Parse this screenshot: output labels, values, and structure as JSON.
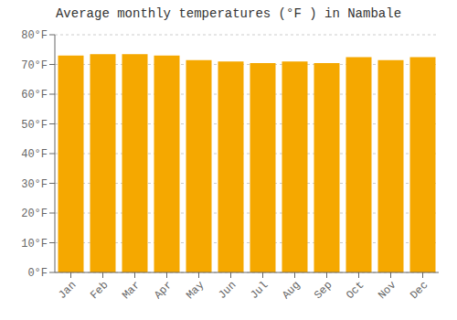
{
  "chart_data": {
    "type": "bar",
    "title": "Average monthly temperatures (°F ) in Nambale",
    "categories": [
      "Jan",
      "Feb",
      "Mar",
      "Apr",
      "May",
      "Jun",
      "Jul",
      "Aug",
      "Sep",
      "Oct",
      "Nov",
      "Dec"
    ],
    "values": [
      73,
      73.5,
      73.5,
      73,
      71.5,
      71,
      70.5,
      71,
      70.5,
      72.5,
      71.5,
      72.5
    ],
    "color": "#F5A800",
    "ylim": [
      0,
      80
    ],
    "yticks": [
      {
        "value": 0,
        "label": "0°F"
      },
      {
        "value": 10,
        "label": "10°F"
      },
      {
        "value": 20,
        "label": "20°F"
      },
      {
        "value": 30,
        "label": "30°F"
      },
      {
        "value": 40,
        "label": "40°F"
      },
      {
        "value": 50,
        "label": "50°F"
      },
      {
        "value": 60,
        "label": "60°F"
      },
      {
        "value": 70,
        "label": "70°F"
      },
      {
        "value": 80,
        "label": "80°F"
      }
    ],
    "grid": true
  }
}
